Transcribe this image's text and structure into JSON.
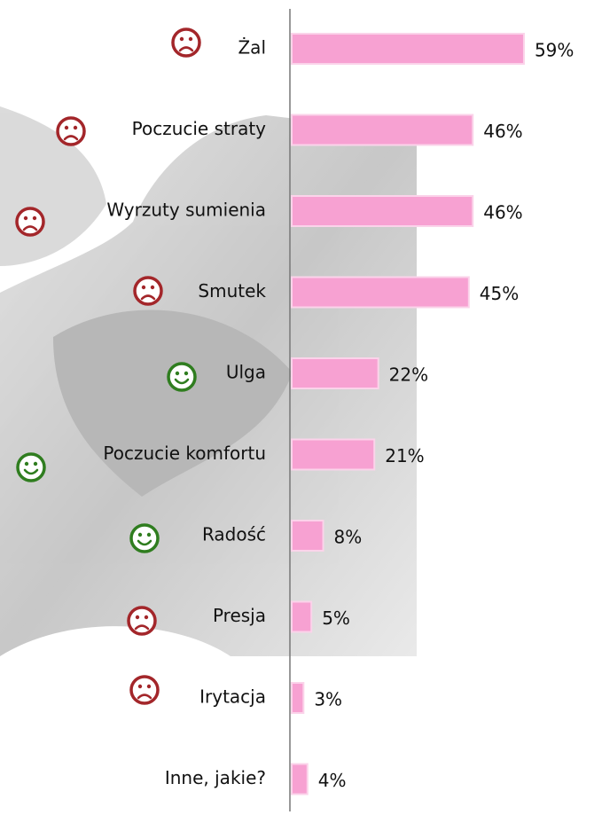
{
  "chart_data": {
    "type": "bar",
    "orientation": "horizontal",
    "categories": [
      "Żal",
      "Poczucie straty",
      "Wyrzuty sumienia",
      "Smutek",
      "Ulga",
      "Poczucie komfortu",
      "Radość",
      "Presja",
      "Irytacja",
      "Inne, jakie?"
    ],
    "values": [
      59,
      46,
      46,
      45,
      22,
      21,
      8,
      5,
      3,
      4
    ],
    "value_labels": [
      "59%",
      "46%",
      "46%",
      "45%",
      "22%",
      "21%",
      "8%",
      "5%",
      "3%",
      "4%"
    ],
    "color": "#f7a1d2"
  }
}
